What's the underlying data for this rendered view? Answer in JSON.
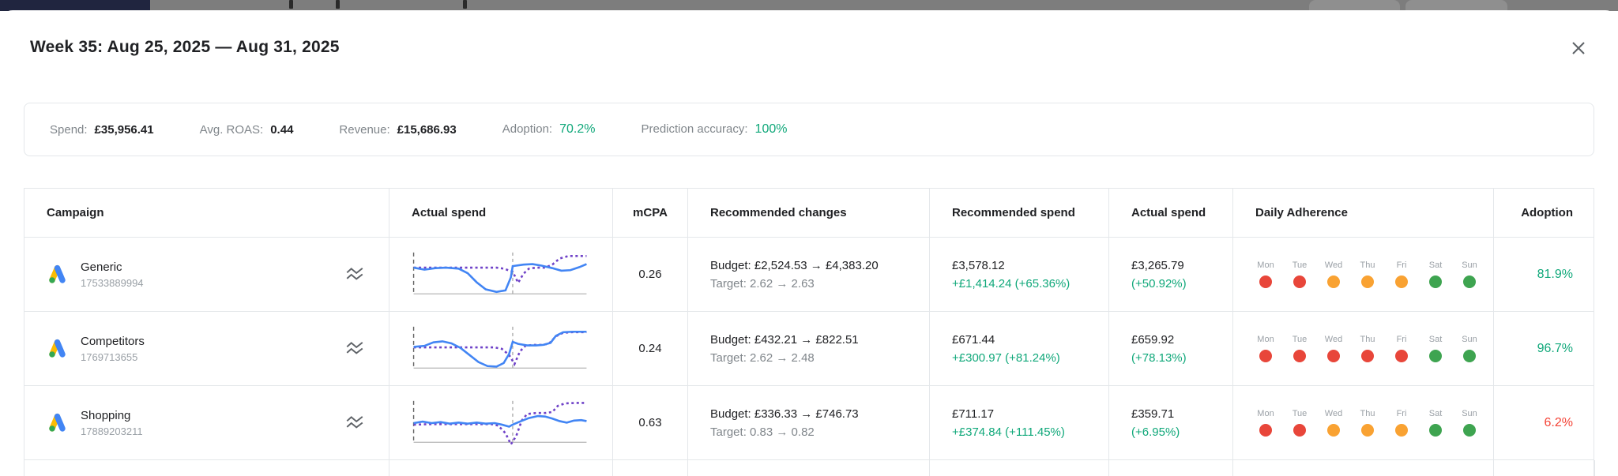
{
  "chrome": {
    "topbar_color": "#7d7d7d",
    "navy_accent_color": "#20253f"
  },
  "modal": {
    "title": "Week 35: Aug 25, 2025 — Aug 31, 2025",
    "summary": {
      "items": [
        {
          "label": "Spend:",
          "value": "£35,956.41",
          "style": "bold"
        },
        {
          "label": "Avg. ROAS:",
          "value": "0.44",
          "style": "bold"
        },
        {
          "label": "Revenue:",
          "value": "£15,686.93",
          "style": "bold"
        },
        {
          "label": "Adoption:",
          "value": "70.2%",
          "style": "green"
        },
        {
          "label": "Prediction accuracy:",
          "value": "100%",
          "style": "green"
        }
      ]
    },
    "table": {
      "headers": [
        "Campaign",
        "Actual spend",
        "mCPA",
        "Recommended changes",
        "Recommended spend",
        "Actual spend",
        "Daily Adherence",
        "Adoption"
      ],
      "days": [
        "Mon",
        "Tue",
        "Wed",
        "Thu",
        "Fri",
        "Sat",
        "Sun"
      ],
      "campaigns": [
        {
          "name": "Generic",
          "id": "17533889994",
          "mcpa": "0.26",
          "budget": "Budget: £2,524.53 → £4,383.20",
          "target": "Target: 2.62 → 2.63",
          "recommended_spend": "£3,578.12",
          "recommended_delta": "+£1,414.24 (+65.36%)",
          "actual_spend": "£3,265.79",
          "actual_delta": "(+50.92%)",
          "adherence": [
            "red",
            "red",
            "orange",
            "orange",
            "orange",
            "green",
            "green"
          ],
          "adoption": "81.9%",
          "adoption_color": "green",
          "spark": {
            "actual": [
              [
                2,
                36
              ],
              [
                8,
                40
              ],
              [
                14,
                37
              ],
              [
                20,
                36
              ],
              [
                27,
                38
              ],
              [
                32,
                47
              ],
              [
                37,
                65
              ],
              [
                42,
                79
              ],
              [
                48,
                84
              ],
              [
                53,
                81
              ],
              [
                56,
                55
              ],
              [
                57,
                33
              ],
              [
                63,
                30
              ],
              [
                68,
                29
              ],
              [
                73,
                32
              ],
              [
                79,
                37
              ],
              [
                84,
                42
              ],
              [
                89,
                41
              ],
              [
                94,
                35
              ],
              [
                98,
                29
              ]
            ],
            "recommended": [
              [
                2,
                36
              ],
              [
                12,
                36
              ],
              [
                24,
                36
              ],
              [
                36,
                36
              ],
              [
                48,
                36
              ],
              [
                52,
                38
              ],
              [
                57,
                44
              ],
              [
                60,
                66
              ],
              [
                63,
                48
              ],
              [
                66,
                38
              ],
              [
                70,
                36
              ],
              [
                75,
                36
              ],
              [
                79,
                30
              ],
              [
                83,
                18
              ],
              [
                88,
                13
              ],
              [
                98,
                13
              ]
            ]
          }
        },
        {
          "name": "Competitors",
          "id": "1769713655",
          "mcpa": "0.24",
          "budget": "Budget: £432.21 → £822.51",
          "target": "Target: 2.62 → 2.48",
          "recommended_spend": "£671.44",
          "recommended_delta": "+£300.97 (+81.24%)",
          "actual_spend": "£659.92",
          "actual_delta": "(+78.13%)",
          "adherence": [
            "red",
            "red",
            "red",
            "red",
            "red",
            "green",
            "green"
          ],
          "adoption": "96.7%",
          "adoption_color": "green",
          "spark": {
            "actual": [
              [
                2,
                46
              ],
              [
                8,
                44
              ],
              [
                13,
                37
              ],
              [
                18,
                35
              ],
              [
                23,
                39
              ],
              [
                28,
                48
              ],
              [
                33,
                62
              ],
              [
                38,
                76
              ],
              [
                43,
                84
              ],
              [
                48,
                85
              ],
              [
                52,
                78
              ],
              [
                55,
                60
              ],
              [
                57,
                36
              ],
              [
                60,
                40
              ],
              [
                65,
                43
              ],
              [
                70,
                43
              ],
              [
                74,
                42
              ],
              [
                78,
                38
              ],
              [
                81,
                24
              ],
              [
                85,
                17
              ],
              [
                90,
                16
              ],
              [
                98,
                16
              ]
            ],
            "recommended": [
              [
                2,
                47
              ],
              [
                12,
                47
              ],
              [
                24,
                47
              ],
              [
                36,
                47
              ],
              [
                47,
                47
              ],
              [
                51,
                50
              ],
              [
                55,
                62
              ],
              [
                58,
                80
              ],
              [
                61,
                55
              ],
              [
                64,
                44
              ],
              [
                68,
                42
              ],
              [
                73,
                42
              ],
              [
                77,
                40
              ],
              [
                81,
                25
              ],
              [
                85,
                18
              ],
              [
                90,
                17
              ],
              [
                98,
                17
              ]
            ]
          }
        },
        {
          "name": "Shopping",
          "id": "17889203211",
          "mcpa": "0.63",
          "budget": "Budget: £336.33 → £746.73",
          "target": "Target: 0.83 → 0.82",
          "recommended_spend": "£711.17",
          "recommended_delta": "+£374.84 (+111.45%)",
          "actual_spend": "£359.71",
          "actual_delta": "(+6.95%)",
          "adherence": [
            "red",
            "red",
            "orange",
            "orange",
            "orange",
            "green",
            "green"
          ],
          "adoption": "6.2%",
          "adoption_color": "red",
          "spark": {
            "actual": [
              [
                2,
                50
              ],
              [
                7,
                47
              ],
              [
                12,
                50
              ],
              [
                17,
                48
              ],
              [
                22,
                51
              ],
              [
                27,
                49
              ],
              [
                32,
                51
              ],
              [
                37,
                49
              ],
              [
                42,
                51
              ],
              [
                47,
                50
              ],
              [
                51,
                53
              ],
              [
                55,
                57
              ],
              [
                57,
                53
              ],
              [
                61,
                47
              ],
              [
                66,
                40
              ],
              [
                71,
                36
              ],
              [
                75,
                37
              ],
              [
                79,
                41
              ],
              [
                83,
                46
              ],
              [
                87,
                49
              ],
              [
                91,
                45
              ],
              [
                95,
                44
              ],
              [
                98,
                46
              ]
            ],
            "recommended": [
              [
                2,
                53
              ],
              [
                12,
                52
              ],
              [
                24,
                52
              ],
              [
                36,
                52
              ],
              [
                45,
                52
              ],
              [
                49,
                55
              ],
              [
                53,
                70
              ],
              [
                56,
                92
              ],
              [
                59,
                75
              ],
              [
                62,
                45
              ],
              [
                65,
                32
              ],
              [
                70,
                30
              ],
              [
                75,
                30
              ],
              [
                79,
                28
              ],
              [
                82,
                16
              ],
              [
                86,
                11
              ],
              [
                92,
                10
              ],
              [
                98,
                10
              ]
            ]
          }
        }
      ]
    }
  },
  "colors": {
    "dot_red": "#e8463a",
    "dot_orange": "#f9a232",
    "dot_green": "#3ea450",
    "green_text": "#10a87a",
    "red_text": "#f44336",
    "spark_actual_blue": "#4285f4",
    "spark_recommended_purple": "#6f42c8"
  }
}
